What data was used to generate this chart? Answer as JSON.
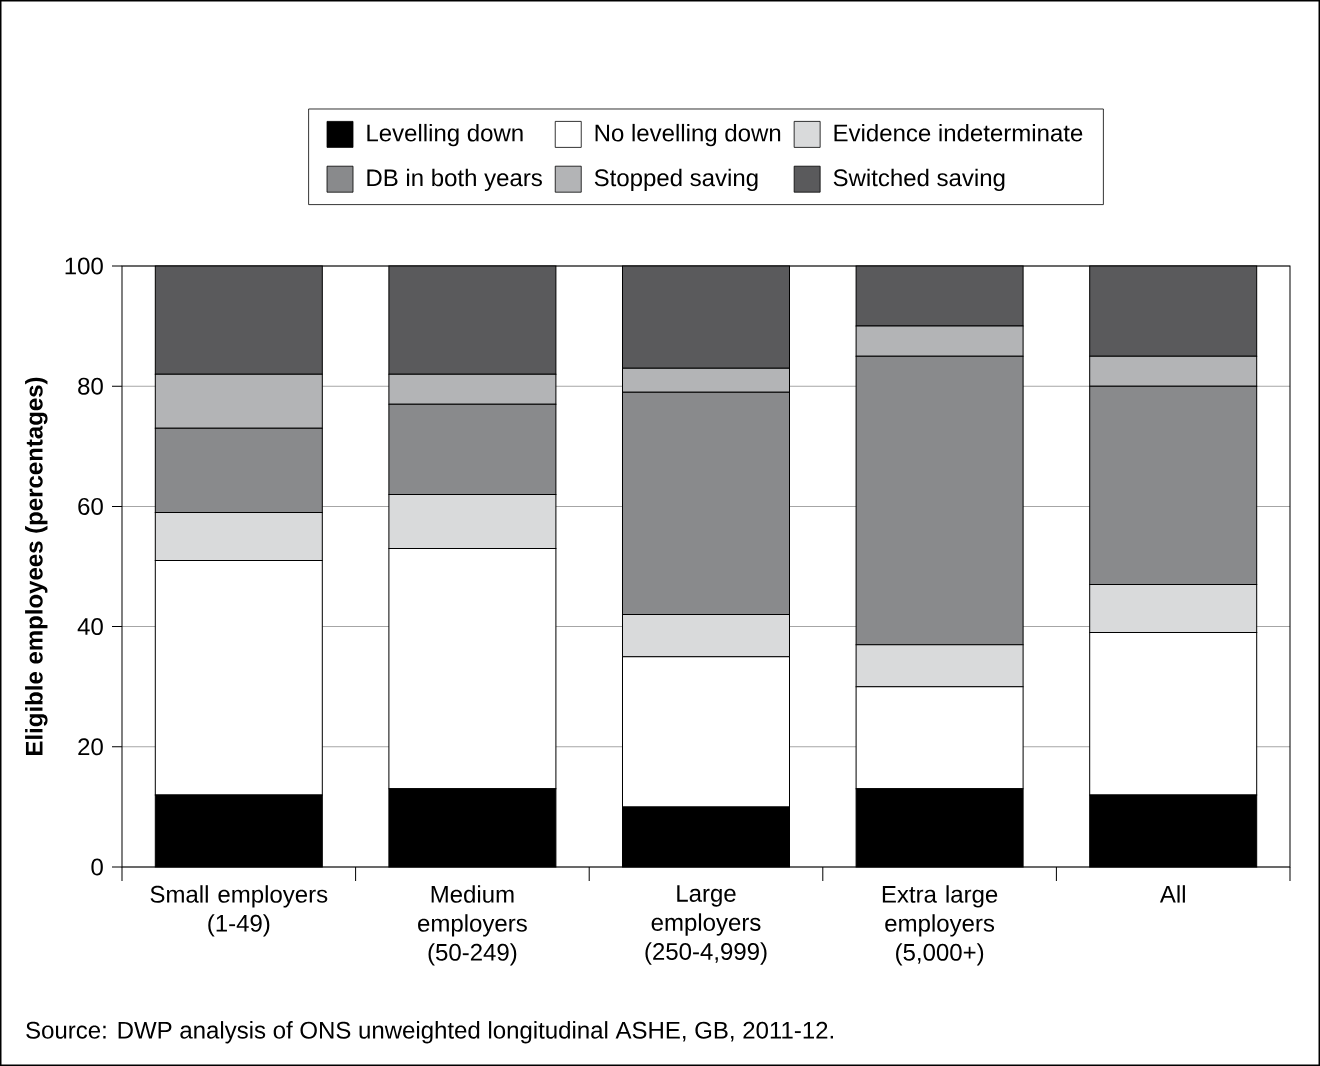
{
  "chart_data": {
    "type": "bar",
    "stacked": true,
    "categories": [
      "Small employers (1-49)",
      "Medium employers (50-249)",
      "Large employers (250-4,999)",
      "Extra large employers (5,000+)",
      "All"
    ],
    "ylabel": "Eligible employees (percentages)",
    "ylim": [
      0,
      100
    ],
    "yticks": [
      0,
      20,
      40,
      60,
      80,
      100
    ],
    "grid": "y",
    "legend": "top",
    "series": [
      {
        "name": "Levelling down",
        "color": "#000000",
        "values": [
          12,
          13,
          10,
          13,
          12
        ]
      },
      {
        "name": "No levelling down",
        "color": "#ffffff",
        "values": [
          39,
          40,
          25,
          17,
          27
        ]
      },
      {
        "name": "Evidence indeterminate",
        "color": "#d9dadb",
        "values": [
          8,
          9,
          7,
          7,
          8
        ]
      },
      {
        "name": "DB in both years",
        "color": "#898a8c",
        "values": [
          14,
          15,
          37,
          48,
          33
        ]
      },
      {
        "name": "Stopped saving",
        "color": "#b3b4b6",
        "values": [
          9,
          5,
          4,
          5,
          5
        ]
      },
      {
        "name": "Switched saving",
        "color": "#5a5a5c",
        "values": [
          18,
          18,
          17,
          10,
          15
        ]
      }
    ],
    "annotations": [
      "Source: DWP analysis of ONS unweighted longitudinal ASHE, GB, 2011-12."
    ]
  }
}
